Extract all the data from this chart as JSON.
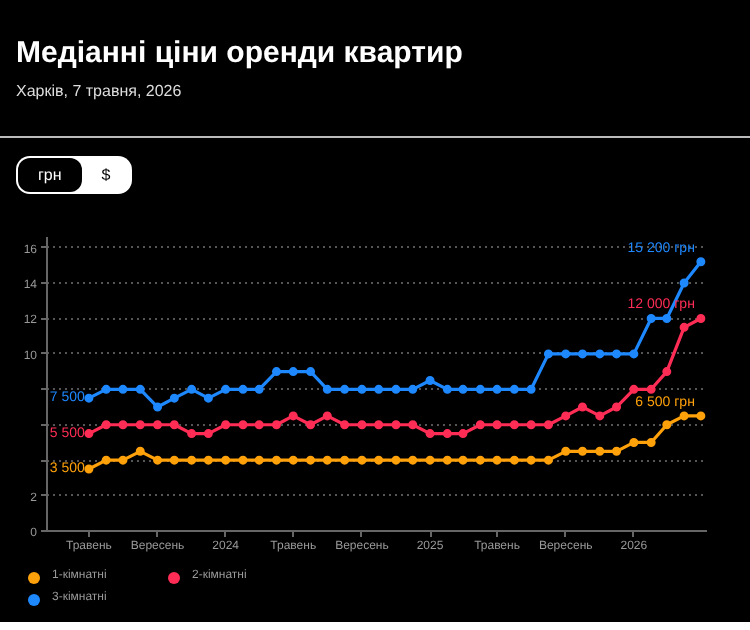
{
  "chart_data": {
    "type": "line",
    "title": "Медіанні ціни оренди квартир",
    "subtitle": "Харків, 7 травня, 2026",
    "annotations": [
      "грн",
      "$",
      {
        "text": "3 500",
        "x": "2023-05",
        "y": 3.5
      },
      {
        "text": "5 500",
        "x": "2023-05",
        "y": 5.5
      },
      {
        "text": "7 500",
        "x": "2023-05",
        "y": 7.5
      },
      {
        "text": "6 500 грн",
        "x": "2026-05",
        "y": 6.5
      },
      {
        "text": "12 000 грн",
        "x": "2026-05",
        "y": 12
      },
      {
        "text": "15 200 грн",
        "x": "2026-05",
        "y": 15.2
      }
    ],
    "x": [
      "2023-05",
      "2023-06",
      "2023-07",
      "2023-08",
      "2023-09",
      "2023-10",
      "2023-11",
      "2023-12",
      "2024-01",
      "2024-02",
      "2024-03",
      "2024-04",
      "2024-05",
      "2024-06",
      "2024-07",
      "2024-08",
      "2024-09",
      "2024-10",
      "2024-11",
      "2024-12",
      "2025-01",
      "2025-02",
      "2025-03",
      "2025-04",
      "2025-05",
      "2025-06",
      "2025-07",
      "2025-08",
      "2025-09",
      "2025-10",
      "2025-11",
      "2025-12",
      "2026-01",
      "2026-02",
      "2026-03",
      "2026-04",
      "2026-05"
    ],
    "series": [
      {
        "name": "1-кімнатні",
        "color": "#ffa10a",
        "values": [
          3.5,
          4,
          4,
          4.5,
          4,
          4,
          4,
          4,
          4,
          4,
          4,
          4,
          4,
          4,
          4,
          4,
          4,
          4,
          4,
          4,
          4,
          4,
          4,
          4,
          4,
          4,
          4,
          4,
          4.5,
          4.5,
          4.5,
          4.5,
          5,
          5,
          6,
          6.5,
          6.5
        ]
      },
      {
        "name": "2-кімнатні",
        "color": "#ff2d55",
        "values": [
          5.5,
          6,
          6,
          6,
          6,
          6,
          5.5,
          5.5,
          6,
          6,
          6,
          6,
          6.5,
          6,
          6.5,
          6,
          6,
          6,
          6,
          6,
          5.5,
          5.5,
          5.5,
          6,
          6,
          6,
          6,
          6,
          6.5,
          7,
          6.5,
          7,
          8,
          8,
          9,
          11.5,
          12
        ]
      },
      {
        "name": "3-кімнатні",
        "color": "#1e88ff",
        "values": [
          7.5,
          8,
          8,
          8,
          7,
          7.5,
          8,
          7.5,
          8,
          8,
          8,
          9,
          9,
          9,
          8,
          8,
          8,
          8,
          8,
          8,
          8.5,
          8,
          8,
          8,
          8,
          8,
          8,
          10,
          10,
          10,
          10,
          10,
          10,
          12,
          12,
          14,
          15.2
        ]
      }
    ],
    "xlim": [
      "2023-02-15",
      "2026-05-12"
    ],
    "xticks": [
      {
        "value": "2023-05",
        "label": "Травень"
      },
      {
        "value": "2023-09",
        "label": "Вересень"
      },
      {
        "value": "2024-01",
        "label": "2024"
      },
      {
        "value": "2024-05",
        "label": "Травень"
      },
      {
        "value": "2024-09",
        "label": "Вересень"
      },
      {
        "value": "2025-01",
        "label": "2025"
      },
      {
        "value": "2025-05",
        "label": "Травень"
      },
      {
        "value": "2025-09",
        "label": "Вересень"
      },
      {
        "value": "2026-01",
        "label": "2026"
      }
    ],
    "ylim": [
      0,
      16.6
    ],
    "yticks": [
      0,
      2,
      {
        "value": 4,
        "label": null
      },
      {
        "value": 6,
        "label": null
      },
      {
        "value": 8,
        "label": null
      },
      10,
      12,
      14,
      16
    ],
    "grid": "y",
    "legend": "bottom",
    "marker": "circle",
    "line_style": "solid"
  }
}
